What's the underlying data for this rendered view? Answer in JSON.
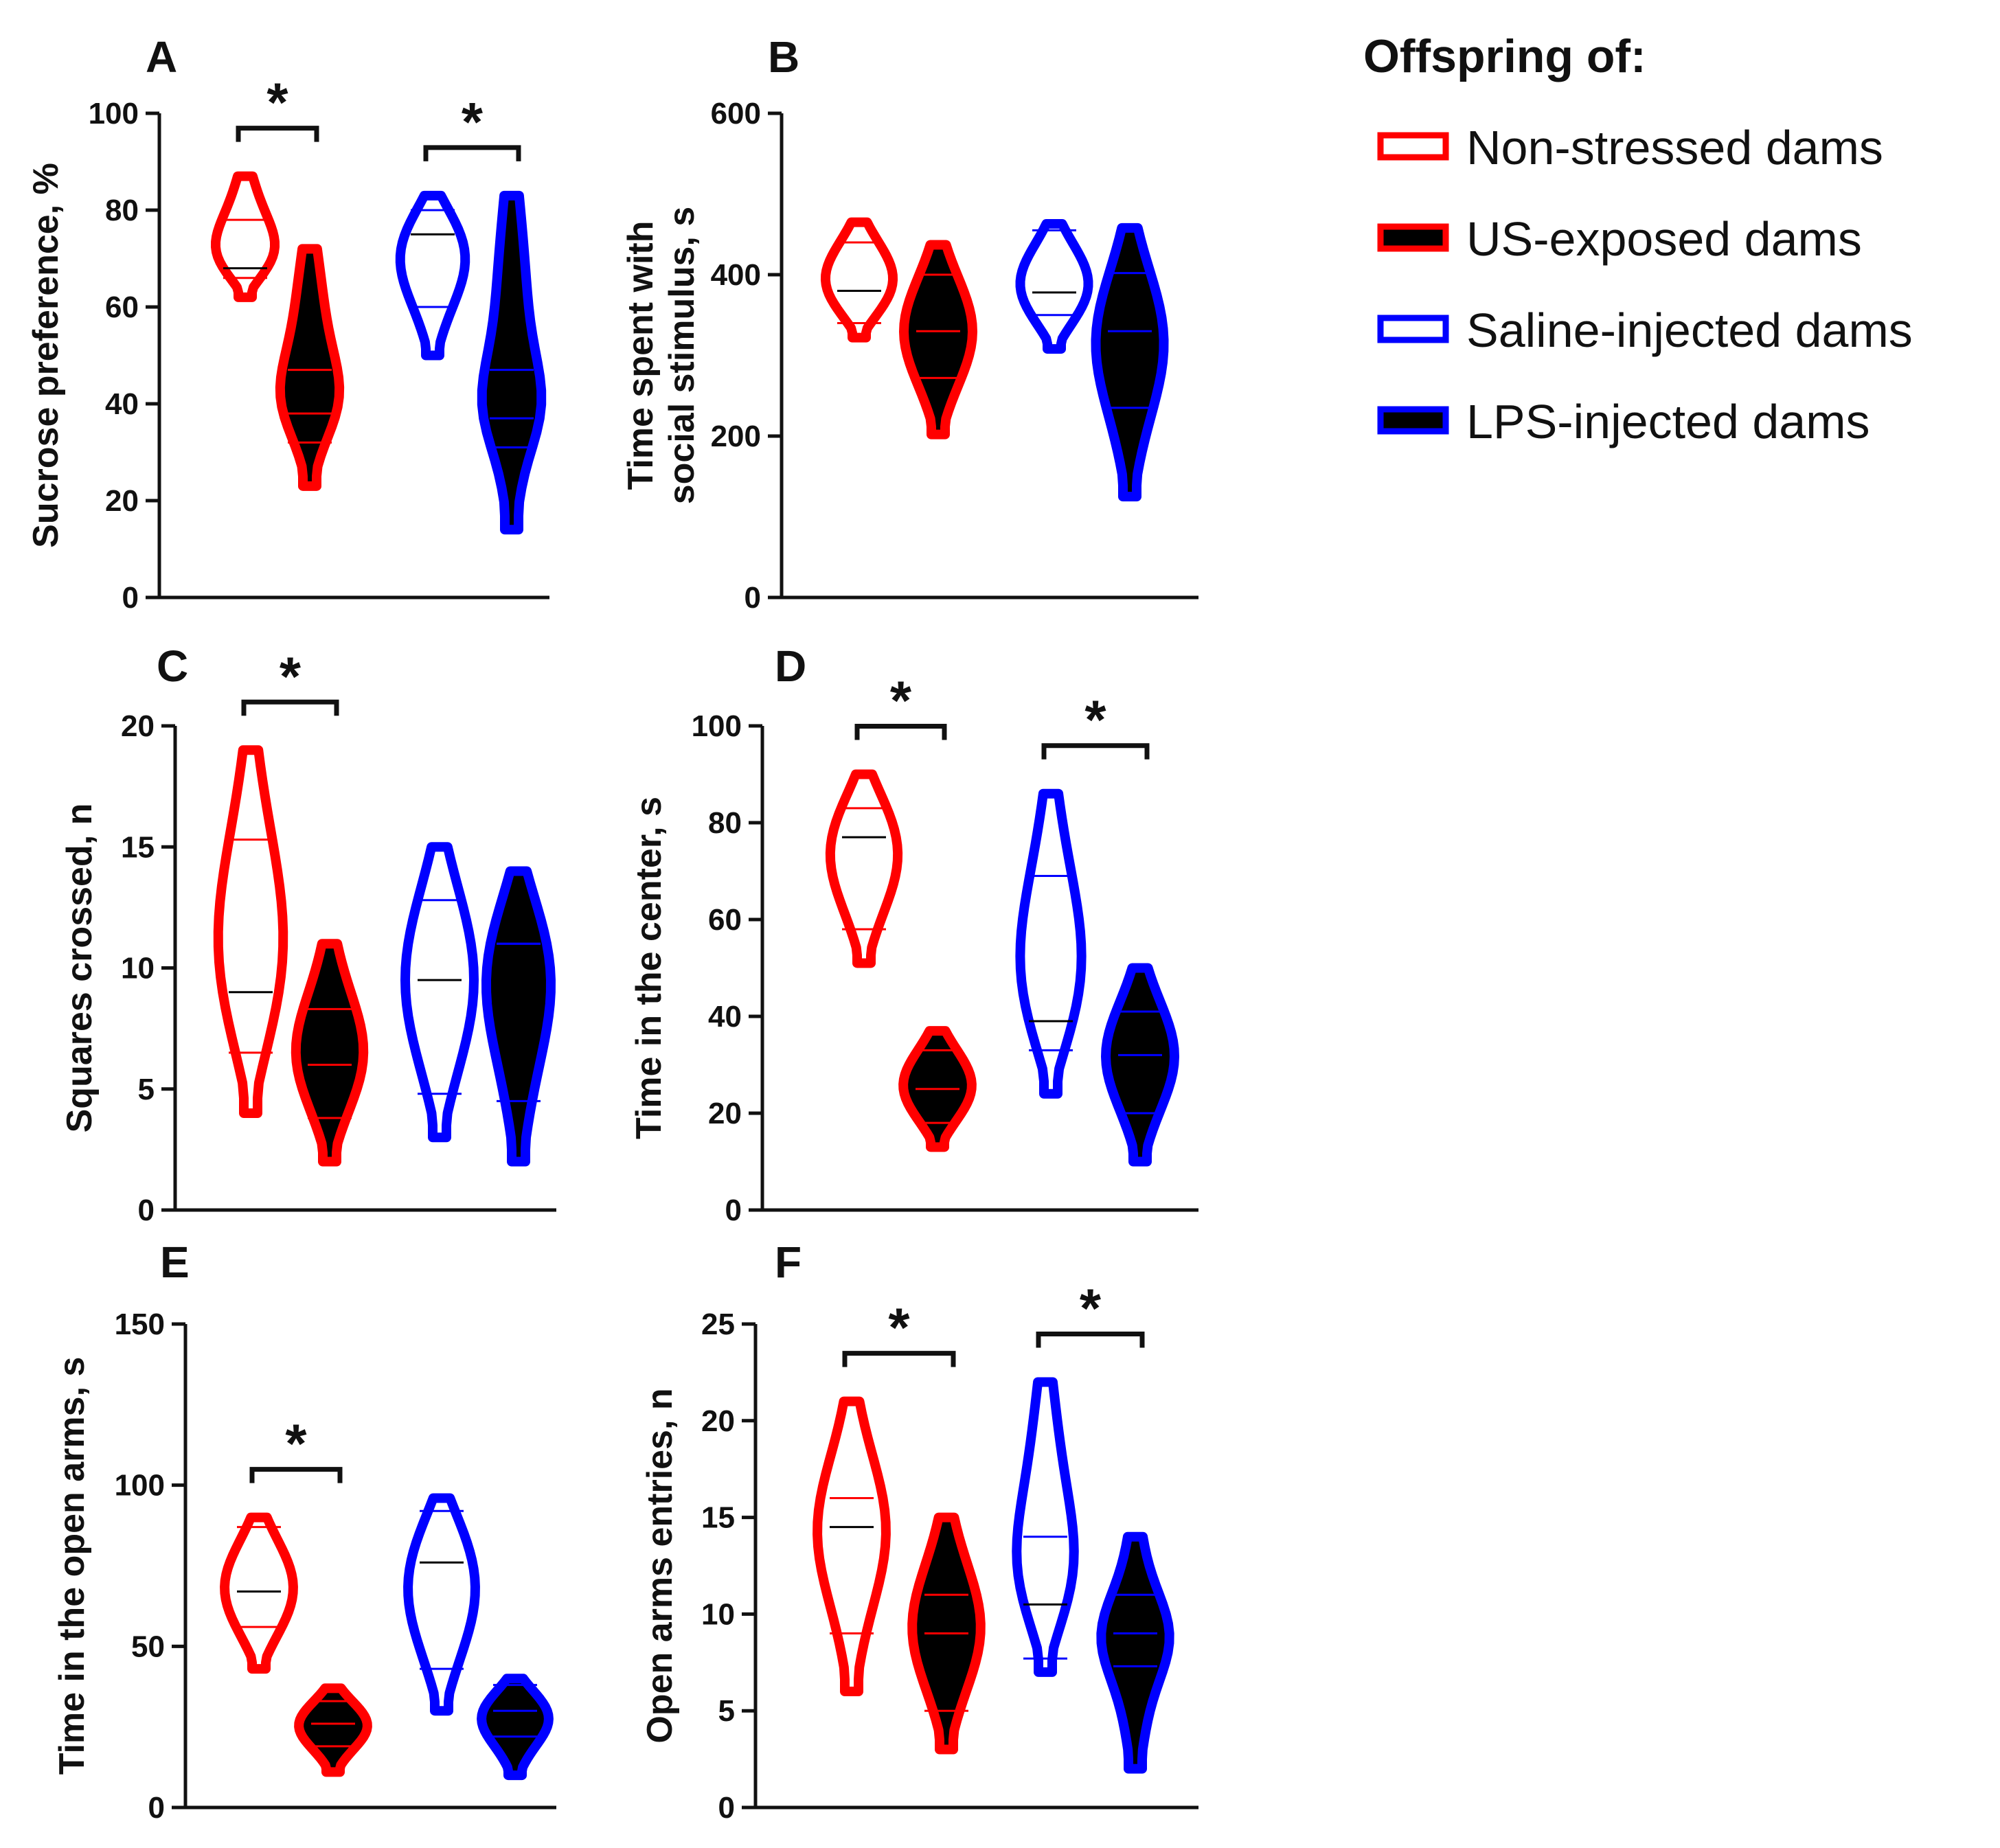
{
  "legend": {
    "title": "Offspring of:",
    "entries": [
      {
        "label": "Non-stressed dams",
        "stroke": "#ff0000",
        "fill": "#ffffff"
      },
      {
        "label": "US-exposed dams",
        "stroke": "#ff0000",
        "fill": "#000000"
      },
      {
        "label": "Saline-injected dams",
        "stroke": "#0000ff",
        "fill": "#ffffff"
      },
      {
        "label": "LPS-injected dams",
        "stroke": "#0000ff",
        "fill": "#000000"
      }
    ]
  },
  "chart_data": [
    {
      "panel": "A",
      "type": "violin",
      "ylabel": "Sucrose preference, %",
      "ylim": [
        0,
        100
      ],
      "yticks": [
        "0",
        "20",
        "40",
        "60",
        "80",
        "100"
      ],
      "groups": [
        {
          "series": "Non-stressed dams",
          "min": 62,
          "max": 87,
          "median": 68,
          "q1": 66,
          "q3": 78
        },
        {
          "series": "US-exposed dams",
          "min": 23,
          "max": 72,
          "median": 38,
          "q1": 32,
          "q3": 47
        },
        {
          "series": "Saline-injected dams",
          "min": 50,
          "max": 83,
          "median": 75,
          "q1": 60,
          "q3": 80
        },
        {
          "series": "LPS-injected dams",
          "min": 14,
          "max": 83,
          "median": 37,
          "q1": 31,
          "q3": 47
        }
      ],
      "significance": [
        {
          "between": [
            0,
            1
          ],
          "label": "*"
        },
        {
          "between": [
            2,
            3
          ],
          "label": "*"
        }
      ]
    },
    {
      "panel": "B",
      "type": "violin",
      "ylabel": "Time spent with social stimulus, s",
      "ylim": [
        0,
        600
      ],
      "yticks": [
        "0",
        "200",
        "400",
        "600"
      ],
      "groups": [
        {
          "series": "Non-stressed dams",
          "min": 322,
          "max": 465,
          "median": 380,
          "q1": 340,
          "q3": 440
        },
        {
          "series": "US-exposed dams",
          "min": 202,
          "max": 437,
          "median": 330,
          "q1": 272,
          "q3": 400
        },
        {
          "series": "Saline-injected dams",
          "min": 308,
          "max": 463,
          "median": 378,
          "q1": 350,
          "q3": 455
        },
        {
          "series": "LPS-injected dams",
          "min": 125,
          "max": 458,
          "median": 330,
          "q1": 235,
          "q3": 402
        }
      ],
      "significance": []
    },
    {
      "panel": "C",
      "type": "violin",
      "ylabel": "Squares crossed, n",
      "ylim": [
        0,
        20
      ],
      "yticks": [
        "0",
        "5",
        "10",
        "15",
        "20"
      ],
      "groups": [
        {
          "series": "Non-stressed dams",
          "min": 4,
          "max": 19,
          "median": 9,
          "q1": 6.5,
          "q3": 15.3
        },
        {
          "series": "US-exposed dams",
          "min": 2,
          "max": 11,
          "median": 6,
          "q1": 3.8,
          "q3": 8.3
        },
        {
          "series": "Saline-injected dams",
          "min": 3,
          "max": 15,
          "median": 9.5,
          "q1": 4.8,
          "q3": 12.8
        },
        {
          "series": "LPS-injected dams",
          "min": 2,
          "max": 14,
          "median": 11,
          "q1": 4.5,
          "q3": 11
        }
      ],
      "significance": [
        {
          "between": [
            0,
            1
          ],
          "label": "*"
        }
      ]
    },
    {
      "panel": "D",
      "type": "violin",
      "ylabel": "Time in the center, s",
      "ylim": [
        0,
        100
      ],
      "yticks": [
        "0",
        "20",
        "40",
        "60",
        "80",
        "100"
      ],
      "groups": [
        {
          "series": "Non-stressed dams",
          "min": 51,
          "max": 90,
          "median": 77,
          "q1": 58,
          "q3": 83
        },
        {
          "series": "US-exposed dams",
          "min": 13,
          "max": 37,
          "median": 25,
          "q1": 18,
          "q3": 33
        },
        {
          "series": "Saline-injected dams",
          "min": 24,
          "max": 86,
          "median": 39,
          "q1": 33,
          "q3": 69
        },
        {
          "series": "LPS-injected dams",
          "min": 10,
          "max": 50,
          "median": 32,
          "q1": 20,
          "q3": 41
        }
      ],
      "significance": [
        {
          "between": [
            0,
            1
          ],
          "label": "*"
        },
        {
          "between": [
            2,
            3
          ],
          "label": "*"
        }
      ]
    },
    {
      "panel": "E",
      "type": "violin",
      "ylabel": "Time in the open arms, s",
      "ylim": [
        0,
        150
      ],
      "yticks": [
        "0",
        "50",
        "100",
        "150"
      ],
      "groups": [
        {
          "series": "Non-stressed dams",
          "min": 43,
          "max": 90,
          "median": 67,
          "q1": 56,
          "q3": 87
        },
        {
          "series": "US-exposed dams",
          "min": 11,
          "max": 37,
          "median": 26,
          "q1": 19,
          "q3": 33
        },
        {
          "series": "Saline-injected dams",
          "min": 30,
          "max": 96,
          "median": 76,
          "q1": 43,
          "q3": 92
        },
        {
          "series": "LPS-injected dams",
          "min": 10,
          "max": 40,
          "median": 30,
          "q1": 22,
          "q3": 38
        }
      ],
      "significance": [
        {
          "between": [
            0,
            1
          ],
          "label": "*"
        }
      ]
    },
    {
      "panel": "F",
      "type": "violin",
      "ylabel": "Open arms entries, n",
      "ylim": [
        0,
        25
      ],
      "yticks": [
        "0",
        "5",
        "10",
        "15",
        "20",
        "25"
      ],
      "groups": [
        {
          "series": "Non-stressed dams",
          "min": 6,
          "max": 21,
          "median": 14.5,
          "q1": 9,
          "q3": 16
        },
        {
          "series": "US-exposed dams",
          "min": 3,
          "max": 15,
          "median": 9,
          "q1": 5,
          "q3": 11
        },
        {
          "series": "Saline-injected dams",
          "min": 7,
          "max": 22,
          "median": 10.5,
          "q1": 7.7,
          "q3": 14
        },
        {
          "series": "LPS-injected dams",
          "min": 2,
          "max": 14,
          "median": 9,
          "q1": 7.3,
          "q3": 11
        }
      ],
      "significance": [
        {
          "between": [
            0,
            1
          ],
          "label": "*"
        },
        {
          "between": [
            2,
            3
          ],
          "label": "*"
        }
      ]
    }
  ]
}
